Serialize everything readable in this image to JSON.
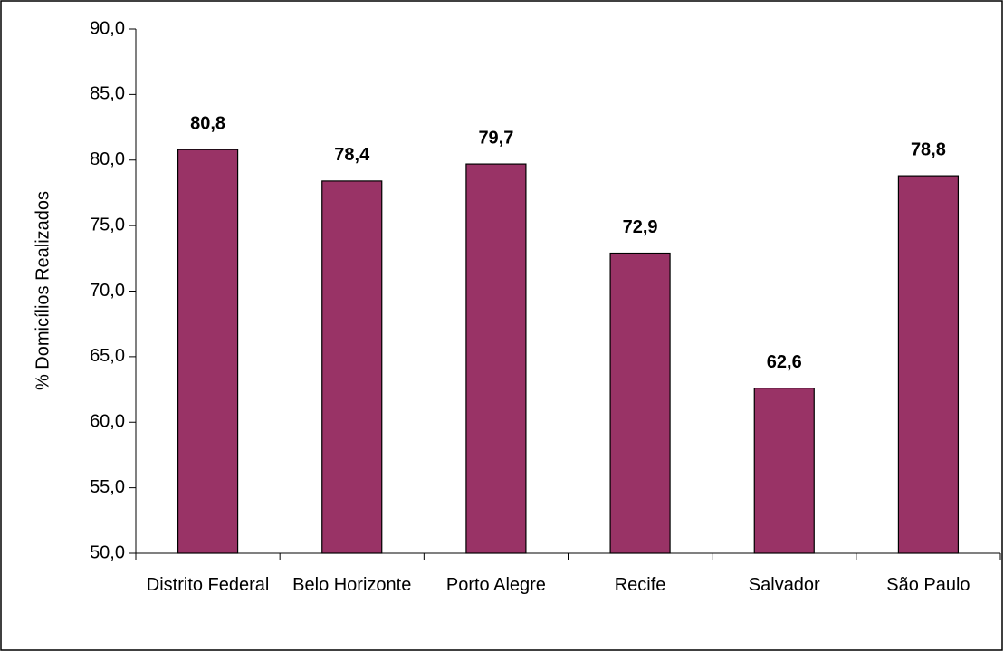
{
  "chart_data": {
    "type": "bar",
    "y_label": "% Domicílios Realizados",
    "categories": [
      "Distrito Federal",
      "Belo Horizonte",
      "Porto Alegre",
      "Recife",
      "Salvador",
      "São Paulo"
    ],
    "values": [
      80.8,
      78.4,
      79.7,
      72.9,
      62.6,
      78.8
    ],
    "value_labels": [
      "80,8",
      "78,4",
      "79,7",
      "72,9",
      "62,6",
      "78,8"
    ],
    "color": "#993366",
    "ylim": [
      50,
      90
    ],
    "yticks": [
      {
        "value": 50,
        "label": "50,0"
      },
      {
        "value": 55,
        "label": "55,0"
      },
      {
        "value": 60,
        "label": "60,0"
      },
      {
        "value": 65,
        "label": "65,0"
      },
      {
        "value": 70,
        "label": "70,0"
      },
      {
        "value": 75,
        "label": "75,0"
      },
      {
        "value": 80,
        "label": "80,0"
      },
      {
        "value": 85,
        "label": "85,0"
      },
      {
        "value": 90,
        "label": "90,0"
      }
    ],
    "grid": false
  }
}
